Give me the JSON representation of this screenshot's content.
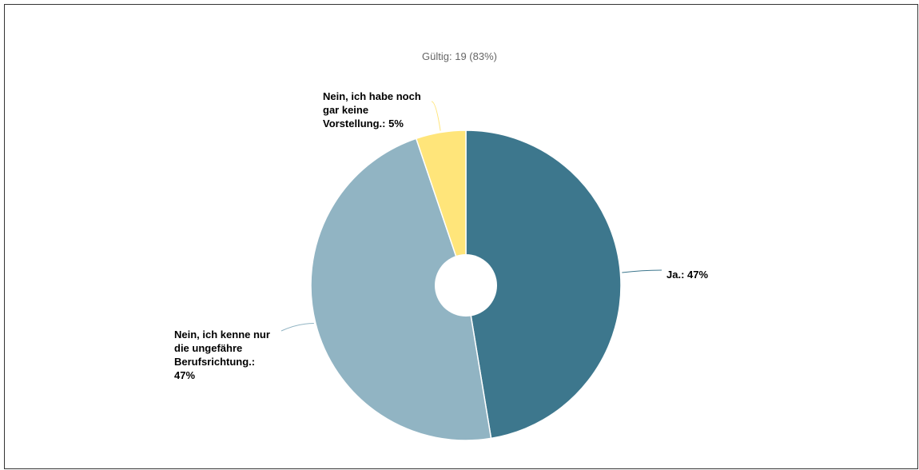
{
  "chart_data": {
    "type": "pie",
    "subtitle": "Gültig: 19 (83%)",
    "hole": true,
    "slices": [
      {
        "label": "Ja.: 47%",
        "value": 47.4,
        "color": "#3d778d"
      },
      {
        "label": "Nein, ich kenne nur die ungefähre Berufsrichtung.: 47%",
        "value": 47.4,
        "color": "#91b4c3"
      },
      {
        "label": "Nein, ich habe noch gar keine Vorstellung.: 5%",
        "value": 5.2,
        "color": "#ffe57a"
      }
    ],
    "legend": "none"
  }
}
